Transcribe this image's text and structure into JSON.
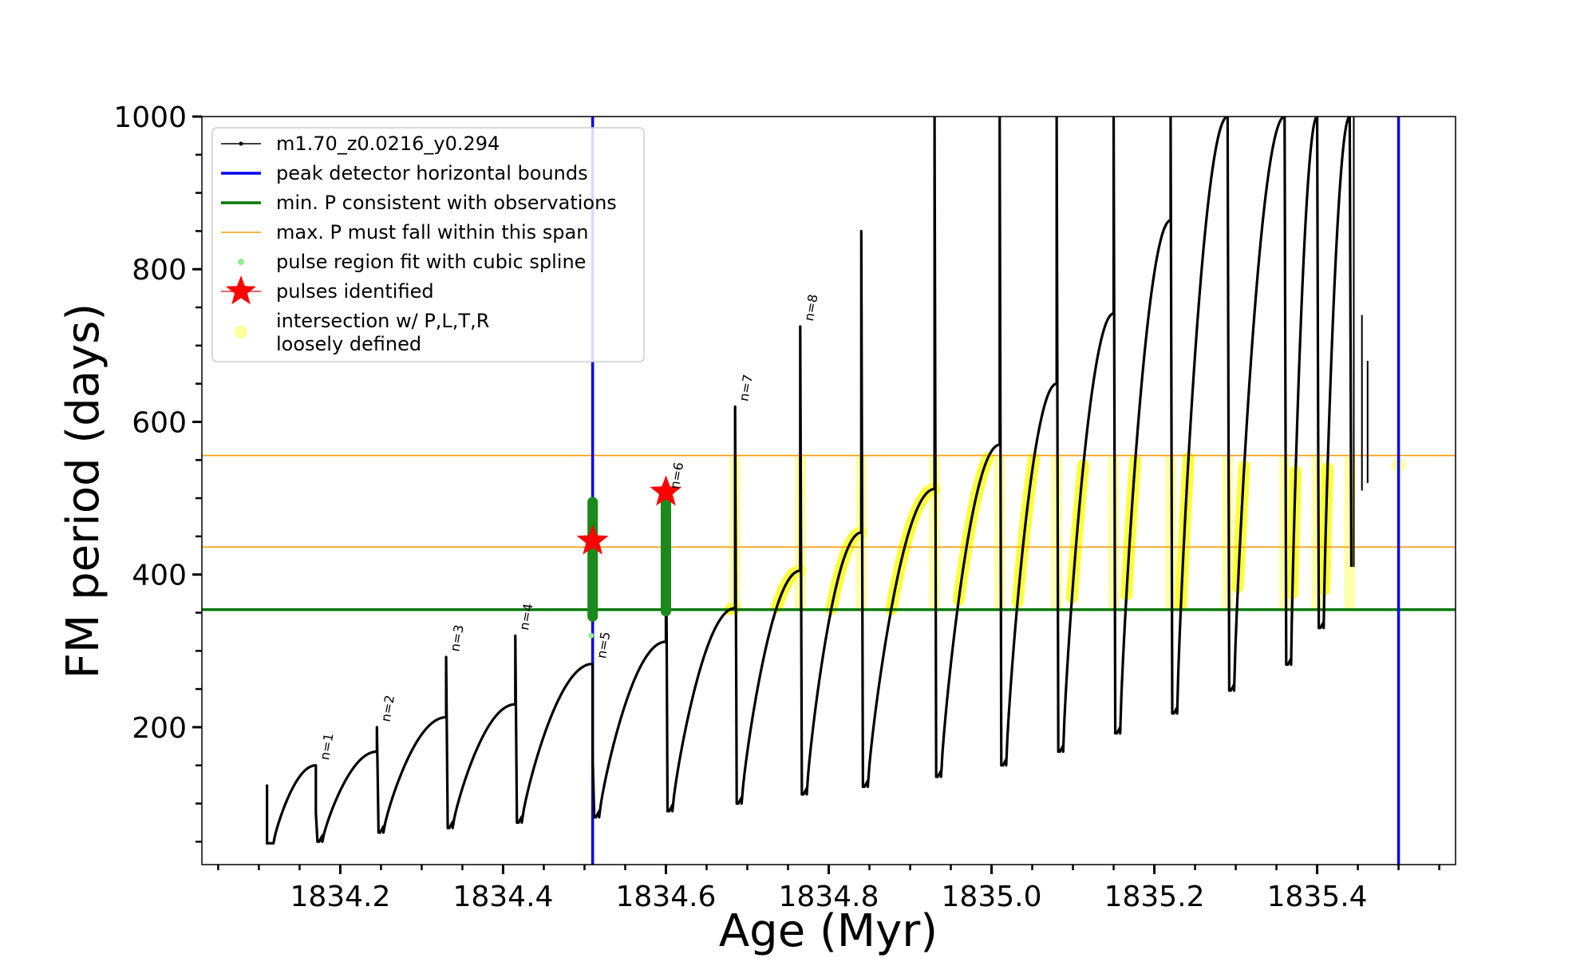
{
  "chart_data": {
    "type": "line",
    "title": "",
    "xlabel": "Age (Myr)",
    "ylabel": "FM period (days)",
    "xlim": [
      1834.03,
      1835.57
    ],
    "ylim": [
      20,
      1000
    ],
    "xticks": [
      1834.2,
      1834.4,
      1834.6,
      1834.8,
      1835.0,
      1835.2,
      1835.4
    ],
    "xtick_labels": [
      "1834.2",
      "1834.4",
      "1834.6",
      "1834.8",
      "1835.0",
      "1835.2",
      "1835.4"
    ],
    "yticks": [
      200,
      400,
      600,
      800,
      1000
    ],
    "ytick_labels": [
      "200",
      "400",
      "600",
      "800",
      "1000"
    ],
    "legend_position": "upper-left",
    "legend": [
      {
        "label": "m1.70_z0.0216_y0.294",
        "style": "line-dot",
        "color": "#000000"
      },
      {
        "label": "peak detector horizontal bounds",
        "style": "line",
        "color": "#0000ee"
      },
      {
        "label": "min. P consistent with observations",
        "style": "line",
        "color": "#007700"
      },
      {
        "label": "max. P must fall within this span",
        "style": "thin-line",
        "color": "#ff9900"
      },
      {
        "label": "pulse region fit with cubic spline",
        "style": "dot",
        "color": "#90ee90"
      },
      {
        "label": "pulses identified",
        "style": "star",
        "color": "#ff0000"
      },
      {
        "label": "intersection w/ P,L,T,R",
        "label2": "loosely defined",
        "style": "big-dot",
        "color": "#ffff99"
      }
    ],
    "vertical_lines": [
      1834.51,
      1835.5
    ],
    "min_period_line": 354,
    "max_period_span": [
      436,
      556
    ],
    "pulses": [
      {
        "label": "n=1",
        "x": 1834.17,
        "low": 50,
        "high": 150,
        "post": 88
      },
      {
        "label": "n=2",
        "x": 1834.245,
        "low": 62,
        "high": 168,
        "post": 200
      },
      {
        "label": "n=3",
        "x": 1834.33,
        "low": 68,
        "high": 213,
        "post": 292
      },
      {
        "label": "n=4",
        "x": 1834.415,
        "low": 75,
        "high": 230,
        "post": 320
      },
      {
        "label": "n=5",
        "x": 1834.51,
        "low": 82,
        "high": 283,
        "post": 160
      },
      {
        "label": "n=6",
        "x": 1834.6,
        "low": 90,
        "high": 312,
        "post": 505
      },
      {
        "label": "n=7",
        "x": 1834.685,
        "low": 100,
        "high": 356,
        "post": 620
      },
      {
        "label": "n=8",
        "x": 1834.765,
        "low": 112,
        "high": 405,
        "post": 725
      },
      {
        "label": "",
        "x": 1834.84,
        "low": 122,
        "high": 455,
        "post": 850
      },
      {
        "label": "",
        "x": 1834.93,
        "low": 135,
        "high": 512,
        "post": 1000
      },
      {
        "label": "",
        "x": 1835.01,
        "low": 150,
        "high": 570,
        "post": 1000
      },
      {
        "label": "",
        "x": 1835.08,
        "low": 168,
        "high": 650,
        "post": 1000
      },
      {
        "label": "",
        "x": 1835.15,
        "low": 192,
        "high": 742,
        "post": 1000
      },
      {
        "label": "",
        "x": 1835.22,
        "low": 218,
        "high": 864,
        "post": 1000
      },
      {
        "label": "",
        "x": 1835.29,
        "low": 248,
        "high": 1000,
        "post": 1000
      },
      {
        "label": "",
        "x": 1835.36,
        "low": 282,
        "high": 1000,
        "post": 1000
      },
      {
        "label": "",
        "x": 1835.4,
        "low": 330,
        "high": 1000,
        "post": 1000
      },
      {
        "label": "",
        "x": 1835.44,
        "low": 410,
        "high": 1000,
        "post": 1000
      }
    ],
    "identified_pulses": [
      {
        "x": 1834.51,
        "y": 444
      },
      {
        "x": 1834.6,
        "y": 508
      }
    ],
    "start_age": 1834.11
  }
}
